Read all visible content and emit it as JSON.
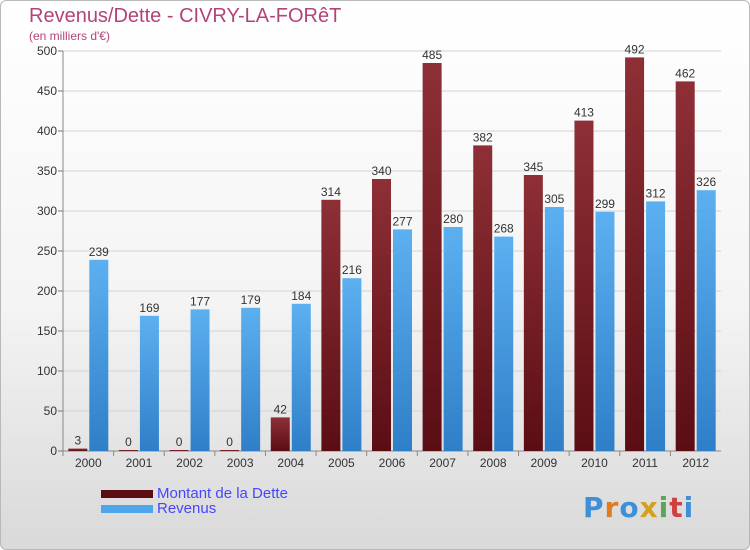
{
  "title": "Revenus/Dette - CIVRY-LA-FORêT",
  "subtitle": "(en milliers d'€)",
  "logo": {
    "letters": [
      "P",
      "r",
      "o",
      "x",
      "i",
      "t",
      "i"
    ],
    "colors": [
      "#3f8fd8",
      "#e07b20",
      "#3f8fd8",
      "#d4a020",
      "#5aa55a",
      "#d04040",
      "#3f8fd8"
    ]
  },
  "chart_data": {
    "type": "bar",
    "categories": [
      "2000",
      "2001",
      "2002",
      "2003",
      "2004",
      "2005",
      "2006",
      "2007",
      "2008",
      "2009",
      "2010",
      "2011",
      "2012"
    ],
    "series": [
      {
        "name": "Montant de la Dette",
        "color": "#7a1e26",
        "values": [
          3,
          0,
          0,
          0,
          42,
          314,
          340,
          485,
          382,
          345,
          413,
          492,
          462
        ]
      },
      {
        "name": "Revenus",
        "color": "#4ea6ea",
        "values": [
          239,
          169,
          177,
          179,
          184,
          216,
          277,
          280,
          268,
          305,
          299,
          312,
          326
        ]
      }
    ],
    "ylim": [
      0,
      500
    ],
    "yticks": [
      "0",
      "50",
      "100",
      "150",
      "200",
      "250",
      "300",
      "350",
      "400",
      "450",
      "500"
    ],
    "grid": true,
    "legend_position": "bottom-left"
  }
}
